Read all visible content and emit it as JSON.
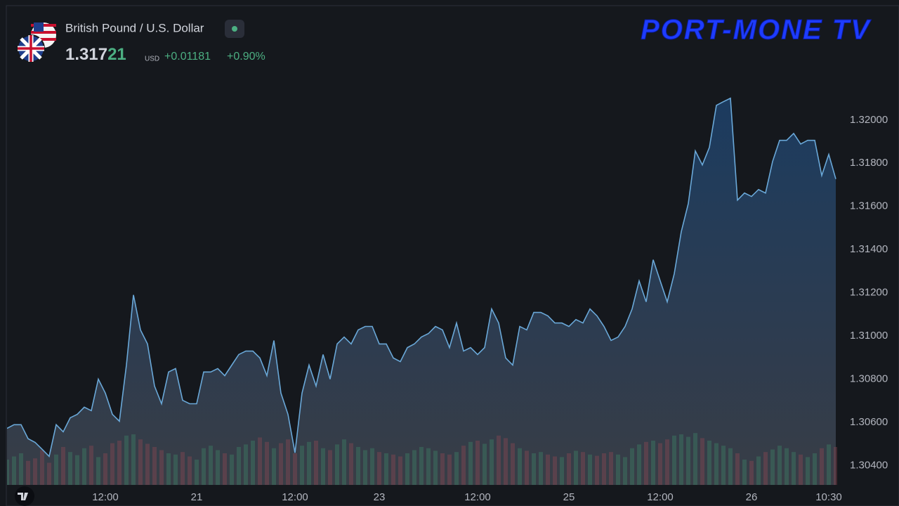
{
  "header": {
    "symbol": "British Pound / U.S. Dollar",
    "price": "1.317",
    "price_tail": "21",
    "currency": "USD",
    "change": "+0.01181",
    "change_pct": "+0.90%"
  },
  "logo": "PORT-MONE TV",
  "chart_data": {
    "type": "area",
    "color": "#6aa8d8",
    "grid": false,
    "ylim": [
      1.3031,
      1.3253
    ],
    "yticks": [
      {
        "value": 1.304,
        "label": "1.30400"
      },
      {
        "value": 1.306,
        "label": "1.30600"
      },
      {
        "value": 1.308,
        "label": "1.30800"
      },
      {
        "value": 1.31,
        "label": "1.31000"
      },
      {
        "value": 1.312,
        "label": "1.31200"
      },
      {
        "value": 1.314,
        "label": "1.31400"
      },
      {
        "value": 1.316,
        "label": "1.31600"
      },
      {
        "value": 1.318,
        "label": "1.31800"
      },
      {
        "value": 1.32,
        "label": "1.32000"
      }
    ],
    "categories": [
      null,
      null,
      null,
      null,
      null,
      null,
      null,
      null,
      null,
      null,
      null,
      null,
      null,
      null,
      "12:00",
      null,
      null,
      null,
      null,
      null,
      null,
      null,
      null,
      null,
      null,
      null,
      null,
      "21",
      null,
      null,
      null,
      null,
      null,
      null,
      null,
      null,
      null,
      null,
      null,
      null,
      null,
      "12:00",
      null,
      null,
      null,
      null,
      null,
      null,
      null,
      null,
      null,
      null,
      null,
      "23",
      null,
      null,
      null,
      null,
      null,
      null,
      null,
      null,
      null,
      null,
      null,
      null,
      null,
      "12:00",
      null,
      null,
      null,
      null,
      null,
      null,
      null,
      null,
      null,
      null,
      null,
      null,
      "25",
      null,
      null,
      null,
      null,
      null,
      null,
      null,
      null,
      null,
      null,
      null,
      null,
      "12:00",
      null,
      null,
      null,
      null,
      null,
      null,
      null,
      null,
      null,
      null,
      null,
      null,
      "26",
      null,
      null,
      null,
      null,
      null,
      null,
      null,
      null,
      null,
      null,
      "10:30",
      null
    ],
    "values": [
      1.30572,
      1.30589,
      1.30589,
      1.30524,
      1.30507,
      1.30475,
      1.30442,
      1.30589,
      1.30556,
      1.30621,
      1.30637,
      1.3067,
      1.30654,
      1.308,
      1.30735,
      1.30637,
      1.30605,
      1.30865,
      1.3119,
      1.31028,
      1.30963,
      1.30768,
      1.30686,
      1.30833,
      1.30849,
      1.30702,
      1.30686,
      1.30686,
      1.30833,
      1.30833,
      1.30849,
      1.30816,
      1.30865,
      1.30914,
      1.3093,
      1.3093,
      1.30898,
      1.30816,
      1.30979,
      1.30735,
      1.30637,
      1.30459,
      1.30735,
      1.30865,
      1.30768,
      1.30914,
      1.308,
      1.30963,
      1.30995,
      1.30963,
      1.31028,
      1.31044,
      1.31044,
      1.30963,
      1.30963,
      1.30898,
      1.30881,
      1.30946,
      1.30963,
      1.30995,
      1.31011,
      1.31044,
      1.31028,
      1.30946,
      1.3106,
      1.3093,
      1.30946,
      1.30914,
      1.30946,
      1.31125,
      1.3106,
      1.30898,
      1.30865,
      1.31044,
      1.31028,
      1.31109,
      1.31109,
      1.31093,
      1.3106,
      1.3106,
      1.31044,
      1.31076,
      1.3106,
      1.31125,
      1.31093,
      1.31044,
      1.30979,
      1.30995,
      1.31044,
      1.31125,
      1.31255,
      1.31158,
      1.31353,
      1.31255,
      1.31158,
      1.31288,
      1.31483,
      1.31613,
      1.31857,
      1.31792,
      1.31873,
      1.32068,
      1.32085,
      1.32101,
      1.31629,
      1.31662,
      1.31646,
      1.31678,
      1.31662,
      1.31808,
      1.31906,
      1.31906,
      1.31938,
      1.31889,
      1.31906,
      1.31906,
      1.31743,
      1.31841,
      1.31727
    ],
    "volume": [
      40,
      45,
      50,
      38,
      42,
      55,
      35,
      48,
      60,
      52,
      47,
      58,
      62,
      44,
      50,
      66,
      70,
      78,
      80,
      72,
      65,
      60,
      55,
      50,
      48,
      52,
      45,
      40,
      58,
      62,
      55,
      50,
      48,
      60,
      64,
      70,
      75,
      68,
      58,
      66,
      72,
      50,
      62,
      68,
      70,
      58,
      55,
      64,
      72,
      66,
      60,
      55,
      58,
      52,
      50,
      48,
      45,
      50,
      55,
      60,
      58,
      54,
      50,
      48,
      52,
      62,
      68,
      70,
      65,
      72,
      78,
      74,
      66,
      58,
      54,
      50,
      52,
      48,
      45,
      44,
      50,
      54,
      52,
      48,
      46,
      50,
      52,
      48,
      44,
      58,
      64,
      68,
      70,
      66,
      72,
      78,
      80,
      76,
      82,
      74,
      70,
      66,
      62,
      58,
      50,
      40,
      38,
      45,
      52,
      56,
      62,
      58,
      52,
      48,
      44,
      50,
      58,
      64,
      60
    ]
  }
}
